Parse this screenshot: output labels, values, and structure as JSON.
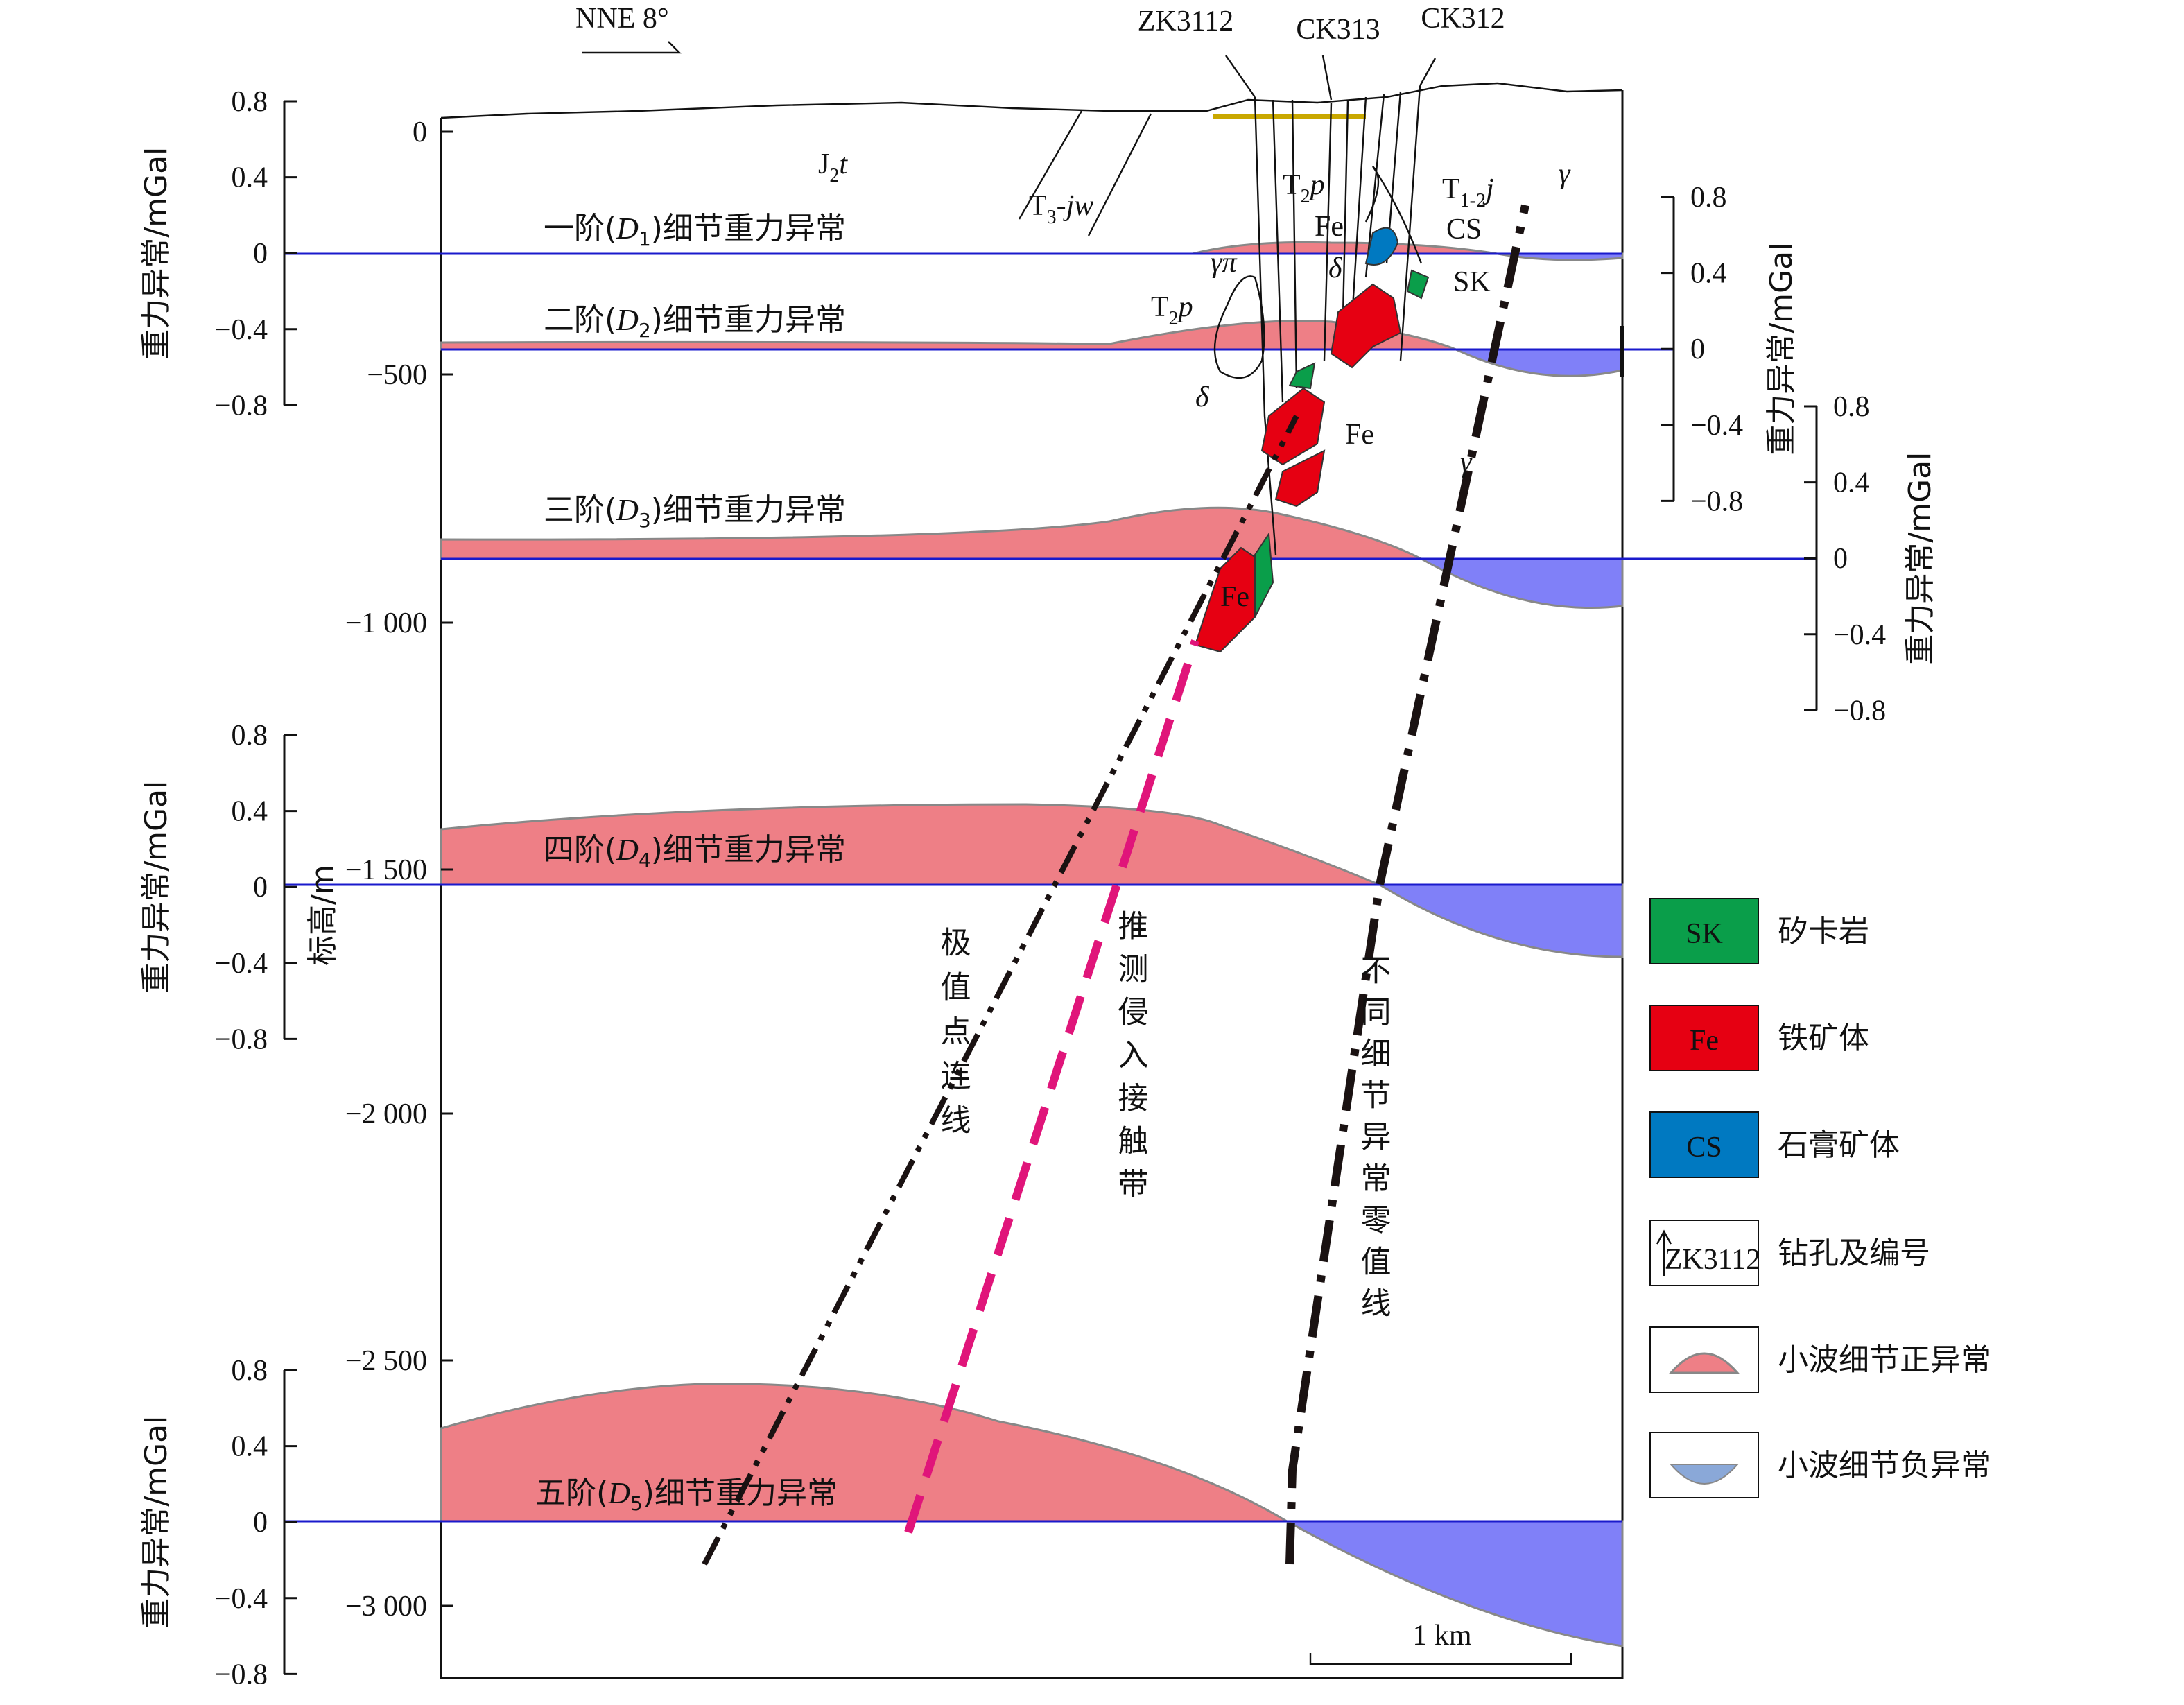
{
  "orientation": "NNE 8°",
  "boreholes": [
    "ZK3112",
    "CK313",
    "CK312"
  ],
  "elevation_axis": {
    "title": "标高/m",
    "ticks": [
      "0",
      "−500",
      "−1 000",
      "−1 500",
      "−2 000",
      "−2 500",
      "−3 000"
    ]
  },
  "gravity_axes": [
    {
      "title": "重力异常/mGal",
      "ticks": [
        "0.8",
        "0.4",
        "0",
        "−0.4",
        "−0.8"
      ]
    },
    {
      "title": "重力异常/mGal",
      "ticks": [
        "0.8",
        "0.4",
        "0",
        "−0.4",
        "−0.8"
      ]
    },
    {
      "title": "重力异常/mGal",
      "ticks": [
        "0.8",
        "0.4",
        "0",
        "−0.4",
        "−0.8"
      ]
    },
    {
      "title": "重力异常/mGal",
      "ticks": [
        "0.8",
        "0.4",
        "0",
        "−0.4",
        "−0.8"
      ]
    },
    {
      "title": "重力异常/mGal",
      "ticks": [
        "0.8",
        "0.4",
        "0",
        "−0.4",
        "−0.8"
      ]
    }
  ],
  "anomaly_labels": [
    {
      "prefix": "一阶(",
      "symbol": "D",
      "sub": "1",
      "suffix": ")细节重力异常"
    },
    {
      "prefix": "二阶(",
      "symbol": "D",
      "sub": "2",
      "suffix": ")细节重力异常"
    },
    {
      "prefix": "三阶(",
      "symbol": "D",
      "sub": "3",
      "suffix": ")细节重力异常"
    },
    {
      "prefix": "四阶(",
      "symbol": "D",
      "sub": "4",
      "suffix": ")细节重力异常"
    },
    {
      "prefix": "五阶(",
      "symbol": "D",
      "sub": "5",
      "suffix": ")细节重力异常"
    }
  ],
  "strata": [
    {
      "base": "J",
      "sub": "2",
      "tail": "t"
    },
    {
      "base": "T",
      "sub": "3",
      "tail": "-jw"
    },
    {
      "base": "T",
      "sub": "2",
      "tail": "p"
    },
    {
      "base": "T",
      "sub": "1-2",
      "tail": "j"
    },
    {
      "base": "T",
      "sub": "2",
      "tail": "p"
    }
  ],
  "rock_labels": [
    "CS",
    "SK",
    "γπ",
    "δ",
    "δ",
    "γ",
    "γ",
    "Fe",
    "Fe",
    "Fe"
  ],
  "line_labels": [
    "极值点连线",
    "推测侵入接触带",
    "不同细节异常零值线"
  ],
  "scale_bar": "1 km",
  "legend": [
    {
      "symbol": "SK",
      "label": "矽卡岩"
    },
    {
      "symbol": "Fe",
      "label": "铁矿体"
    },
    {
      "symbol": "CS",
      "label": "石膏矿体"
    },
    {
      "symbol": "ZK3112",
      "label": "钻孔及编号"
    },
    {
      "label": "小波细节正异常"
    },
    {
      "label": "小波细节负异常"
    }
  ]
}
